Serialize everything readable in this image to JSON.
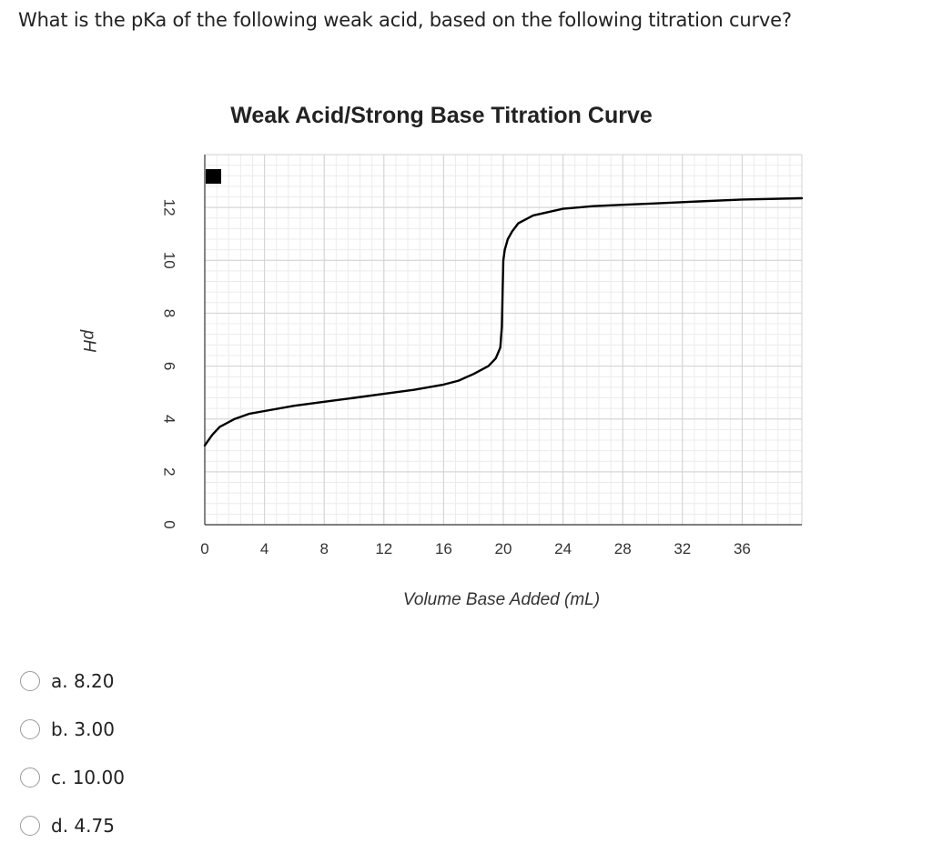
{
  "question": {
    "text": "What is the pKa of the following weak acid, based on the following titration curve?"
  },
  "chart_data": {
    "type": "line",
    "title": "Weak Acid/Strong Base Titration Curve",
    "xlabel": "Volume Base Added (mL)",
    "ylabel": "pH",
    "xlim": [
      0,
      40
    ],
    "ylim": [
      0,
      14
    ],
    "xticks": [
      0,
      4,
      8,
      12,
      16,
      20,
      24,
      28,
      32,
      36
    ],
    "yticks": [
      0,
      2,
      4,
      6,
      8,
      10,
      12
    ],
    "grid": true,
    "legend": "top-left",
    "series": [
      {
        "x": [
          0,
          0.5,
          1,
          2,
          3,
          4,
          6,
          8,
          10,
          12,
          14,
          16,
          17,
          18,
          19,
          19.5,
          19.8,
          19.9,
          20.0,
          20.1,
          20.3,
          20.6,
          21,
          22,
          24,
          26,
          28,
          30,
          32,
          36,
          40
        ],
        "y": [
          3.0,
          3.4,
          3.7,
          4.0,
          4.2,
          4.3,
          4.5,
          4.65,
          4.8,
          4.95,
          5.1,
          5.3,
          5.45,
          5.7,
          6.0,
          6.3,
          6.7,
          7.5,
          10.0,
          10.4,
          10.8,
          11.1,
          11.4,
          11.7,
          11.95,
          12.05,
          12.1,
          12.15,
          12.2,
          12.3,
          12.35
        ],
        "color": "#000000"
      }
    ]
  },
  "options": [
    {
      "label": "a. 8.20"
    },
    {
      "label": "b. 3.00"
    },
    {
      "label": "c. 10.00"
    },
    {
      "label": "d. 4.75"
    }
  ]
}
